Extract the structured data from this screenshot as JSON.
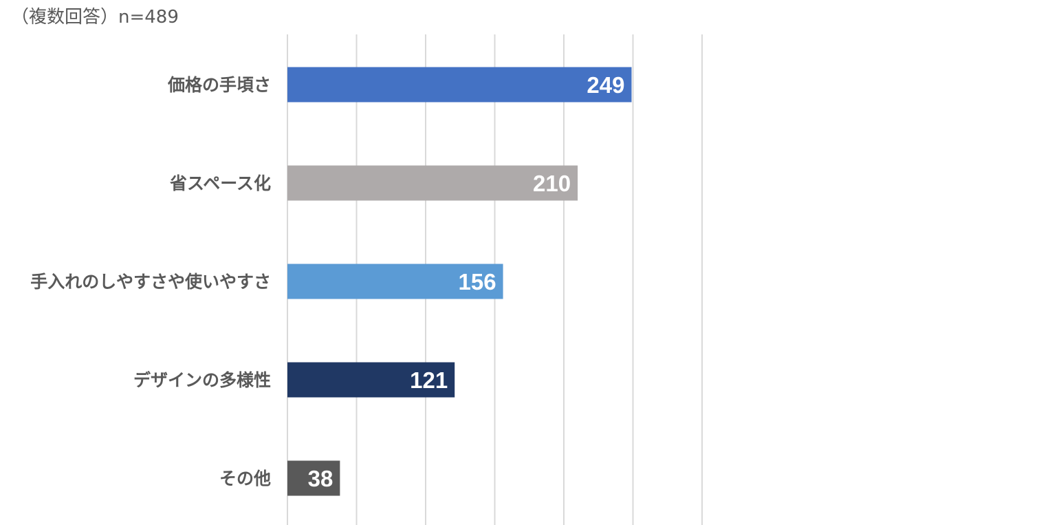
{
  "subtitle": "（複数回答）n=489",
  "chart_data": {
    "type": "bar",
    "orientation": "horizontal",
    "subtitle": "（複数回答）n=489",
    "categories": [
      "価格の手頃さ",
      "省スペース化",
      "手入れのしやすさや使いやすさ",
      "デザインの多様性",
      "その他"
    ],
    "values": [
      249,
      210,
      156,
      121,
      38
    ],
    "colors": [
      "#4472c4",
      "#aeaaaa",
      "#5b9bd5",
      "#203864",
      "#595959"
    ],
    "xlim": [
      0,
      300
    ],
    "x_grid_step": 50,
    "grid": true,
    "data_labels": true,
    "legend": "none"
  }
}
